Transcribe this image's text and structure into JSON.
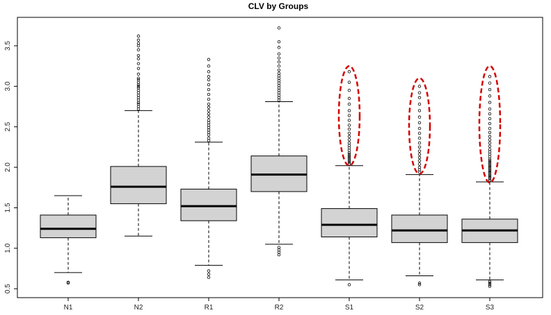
{
  "chart_data": {
    "type": "boxplot",
    "title": "CLV by Groups",
    "xlabel": "",
    "ylabel": "",
    "ylim": [
      0.45,
      3.8
    ],
    "yticks": [
      0.5,
      1.0,
      1.5,
      2.0,
      2.5,
      3.0,
      3.5
    ],
    "ytick_labels": [
      "0.5",
      "1.0",
      "1.5",
      "2.0",
      "2.5",
      "3.0",
      "3.5"
    ],
    "grid": false,
    "legend": "none",
    "colors": {
      "box_fill": "#d3d3d3",
      "outline": "#000000",
      "highlight": "#d40000"
    },
    "categories": [
      "N1",
      "N2",
      "R1",
      "R2",
      "S1",
      "S2",
      "S3"
    ],
    "boxes": [
      {
        "name": "N1",
        "whisker_low": 0.7,
        "q1": 1.13,
        "median": 1.24,
        "q3": 1.41,
        "whisker_high": 1.65,
        "outliers": [
          0.57,
          0.58
        ]
      },
      {
        "name": "N2",
        "whisker_low": 1.15,
        "q1": 1.55,
        "median": 1.76,
        "q3": 2.01,
        "whisker_high": 2.7,
        "outliers": [
          2.72,
          2.75,
          2.78,
          2.8,
          2.83,
          2.86,
          2.89,
          2.92,
          2.95,
          2.98,
          3.0,
          3.02,
          3.05,
          3.08,
          3.1,
          3.15,
          3.22,
          3.28,
          3.34,
          3.38,
          3.45,
          3.5,
          3.53,
          3.57,
          3.62
        ]
      },
      {
        "name": "R1",
        "whisker_low": 0.79,
        "q1": 1.34,
        "median": 1.52,
        "q3": 1.73,
        "whisker_high": 2.31,
        "outliers": [
          0.64,
          0.68,
          0.72,
          2.33,
          2.36,
          2.4,
          2.43,
          2.46,
          2.49,
          2.52,
          2.55,
          2.58,
          2.62,
          2.66,
          2.7,
          2.74,
          2.78,
          2.84,
          2.9,
          2.96,
          3.02,
          3.08,
          3.12,
          3.18,
          3.25,
          3.33
        ]
      },
      {
        "name": "R2",
        "whisker_low": 1.05,
        "q1": 1.7,
        "median": 1.91,
        "q3": 2.14,
        "whisker_high": 2.81,
        "outliers": [
          0.92,
          0.95,
          0.98,
          1.01,
          2.83,
          2.86,
          2.89,
          2.92,
          2.95,
          2.98,
          3.01,
          3.04,
          3.07,
          3.1,
          3.13,
          3.16,
          3.2,
          3.25,
          3.3,
          3.35,
          3.4,
          3.48,
          3.55,
          3.72
        ]
      },
      {
        "name": "S1",
        "whisker_low": 0.61,
        "q1": 1.14,
        "median": 1.29,
        "q3": 1.49,
        "whisker_high": 2.02,
        "outliers": [
          0.55,
          2.04,
          2.06,
          2.08,
          2.1,
          2.12,
          2.14,
          2.16,
          2.18,
          2.21,
          2.24,
          2.27,
          2.3,
          2.34,
          2.38,
          2.42,
          2.47,
          2.52,
          2.58,
          2.64,
          2.7,
          2.78,
          2.85,
          2.95,
          3.05,
          3.18
        ]
      },
      {
        "name": "S2",
        "whisker_low": 0.66,
        "q1": 1.07,
        "median": 1.22,
        "q3": 1.41,
        "whisker_high": 1.91,
        "outliers": [
          0.55,
          0.57,
          1.94,
          1.97,
          2.0,
          2.04,
          2.08,
          2.12,
          2.16,
          2.2,
          2.25,
          2.3,
          2.36,
          2.42,
          2.48,
          2.55,
          2.62,
          2.7,
          2.78,
          2.86,
          2.92,
          3.0
        ]
      },
      {
        "name": "S3",
        "whisker_low": 0.61,
        "q1": 1.07,
        "median": 1.22,
        "q3": 1.36,
        "whisker_high": 1.82,
        "outliers": [
          0.53,
          0.55,
          0.57,
          0.59,
          1.84,
          1.86,
          1.88,
          1.9,
          1.92,
          1.94,
          1.96,
          1.98,
          2.0,
          2.02,
          2.04,
          2.06,
          2.08,
          2.1,
          2.13,
          2.16,
          2.19,
          2.22,
          2.26,
          2.3,
          2.34,
          2.38,
          2.43,
          2.48,
          2.54,
          2.6,
          2.66,
          2.72,
          2.8,
          2.88,
          2.96,
          3.04,
          3.12
        ]
      }
    ],
    "annotations": [
      {
        "type": "dashed-ellipse",
        "target": "S1",
        "y_range": [
          2.02,
          3.25
        ]
      },
      {
        "type": "dashed-ellipse",
        "target": "S2",
        "y_range": [
          1.92,
          3.1
        ]
      },
      {
        "type": "dashed-ellipse",
        "target": "S3",
        "y_range": [
          1.81,
          3.25
        ]
      }
    ]
  }
}
